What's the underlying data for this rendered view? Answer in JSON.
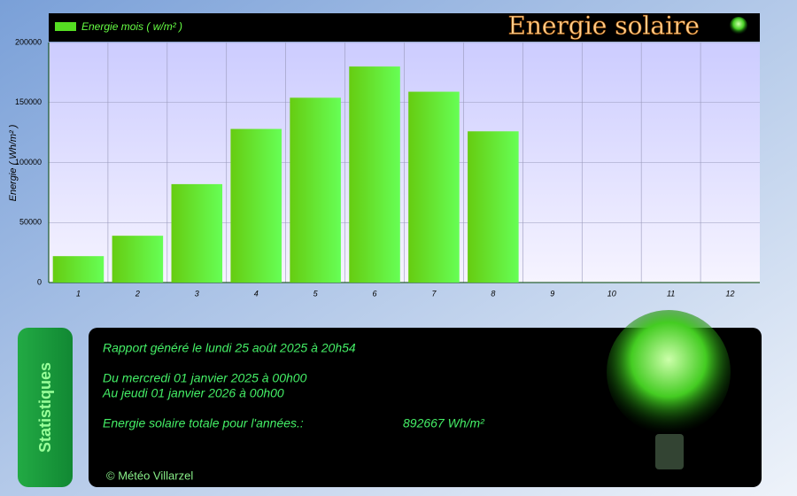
{
  "chart_data": {
    "type": "bar",
    "title": "Energie solaire",
    "ylabel": "Energie ( Wh/m² )",
    "categories": [
      "1",
      "2",
      "3",
      "4",
      "5",
      "6",
      "7",
      "8",
      "9",
      "10",
      "11",
      "12"
    ],
    "series": [
      {
        "name": "Energie mois ( w/m² )",
        "color": "#55dd22",
        "values": [
          22000,
          39000,
          82000,
          128000,
          154000,
          180000,
          159000,
          126000,
          null,
          null,
          null,
          null
        ]
      }
    ],
    "ylim": [
      0,
      200000
    ],
    "yticks": [
      0,
      50000,
      100000,
      150000,
      200000
    ],
    "grid": true,
    "legend": "top-left"
  },
  "stats": {
    "title": "Statistiques",
    "lines": [
      "Rapport généré le lundi 25 août 2025 à 20h54",
      "Du mercredi 01 janvier 2025 à 00h00",
      "Au jeudi 01 janvier 2026 à 00h00",
      "Energie solaire totale pour l'années.:"
    ],
    "total": "892667 Wh/m²",
    "footer": "© Météo Villarzel"
  }
}
